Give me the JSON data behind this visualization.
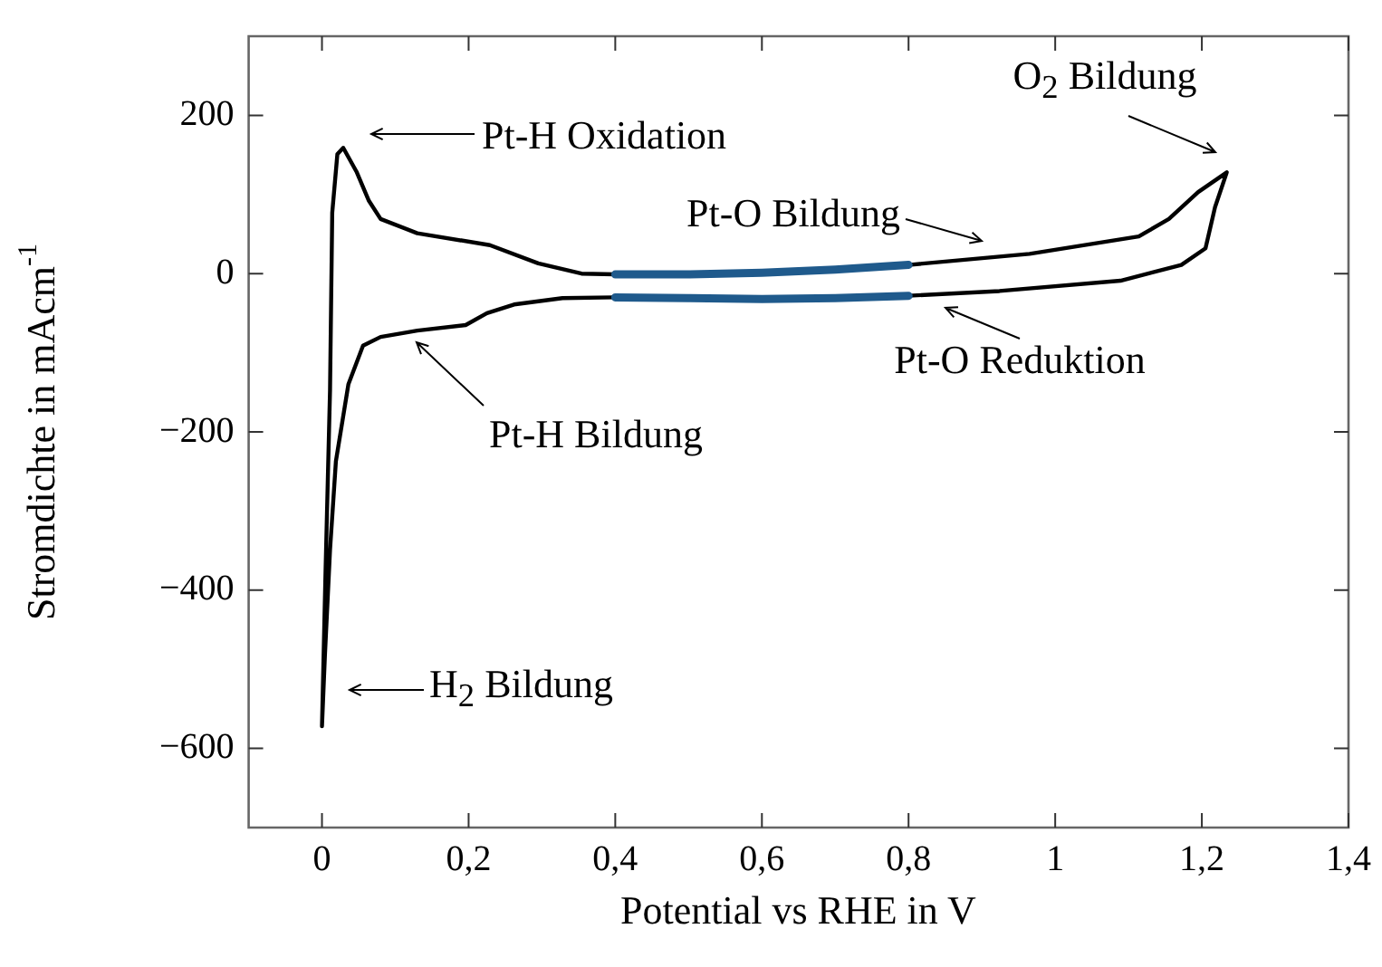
{
  "chart_data": {
    "type": "line",
    "xlabel": "Potential vs RHE in V",
    "ylabel": "Stromdichte in mAcm$^{-1}$",
    "xlim": [
      -0.1,
      1.4
    ],
    "ylim": [
      -700,
      300
    ],
    "xticks": [
      0,
      {
        "value": 0.2,
        "label": "0,2"
      },
      {
        "value": 0.4,
        "label": "0,4"
      },
      {
        "value": 0.6,
        "label": "0,6"
      },
      {
        "value": 0.8,
        "label": "0,8"
      },
      1,
      {
        "value": 1.2,
        "label": "1,2"
      },
      {
        "value": 1.4,
        "label": "1,4"
      }
    ],
    "yticks": [
      {
        "value": -600,
        "label": "−600"
      },
      {
        "value": -400,
        "label": "−400"
      },
      {
        "value": -200,
        "label": "−200"
      },
      0,
      200
    ],
    "grid": false,
    "legend": false,
    "marker": "none",
    "line_style": "solid",
    "series": [
      {
        "color": "#000000",
        "x": [
          0,
          0.005,
          0.011,
          0.014,
          0.021,
          0.029,
          0.047,
          0.064,
          0.08,
          0.13,
          0.229,
          0.295,
          0.354,
          0.4,
          0.6,
          0.8,
          0.965,
          1.114,
          1.155,
          1.195,
          1.234,
          1.218,
          1.205,
          1.172,
          1.089,
          0.924,
          0.8,
          0.6,
          0.4,
          0.328,
          0.262,
          0.225,
          0.196,
          0.13,
          0.08,
          0.056,
          0.036,
          0.019,
          0.011,
          0.004,
          0
        ],
        "values": [
          -572,
          -371,
          -147,
          77,
          151,
          159,
          129,
          92,
          69,
          51,
          36,
          13,
          0,
          -1,
          null,
          11,
          25,
          47,
          69,
          103,
          128,
          84,
          32,
          11,
          -9,
          -22,
          -28,
          null,
          -30,
          -31,
          -39,
          -50,
          -65,
          -72,
          -80,
          -91,
          -140,
          -237,
          -349,
          -483,
          -572
        ]
      },
      {
        "color": "#1f5a8c",
        "x": [
          0.4,
          0.5,
          0.6,
          0.7,
          0.8
        ],
        "values": [
          -1,
          -1,
          1,
          5,
          11
        ]
      },
      {
        "color": "#1f5a8c",
        "x": [
          0.4,
          0.5,
          0.6,
          0.7,
          0.8
        ],
        "values": [
          -30,
          -31,
          -32,
          -31,
          -28
        ]
      }
    ],
    "annotations": [
      "Pt-H Oxidation",
      "Pt-O Bildung",
      "Pt-O Reduktion",
      "Pt-H Bildung",
      "H$_{2}$ Bildung",
      "O$_{2}$ Bildung"
    ]
  }
}
